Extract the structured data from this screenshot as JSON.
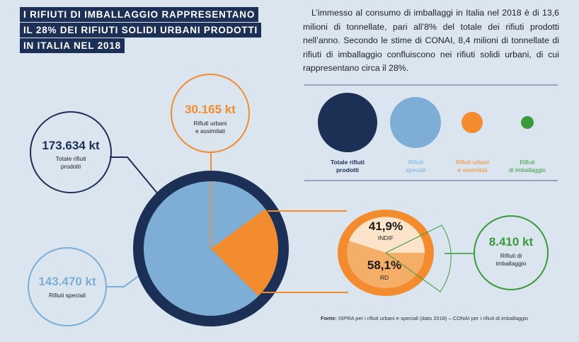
{
  "title": [
    "I RIFIUTI DI IMBALLAGGIO RAPPRESENTANO",
    "IL 28% DEI RIFIUTI SOLIDI URBANI PRODOTTI",
    "IN ITALIA NEL 2018"
  ],
  "paragraph": "L’immesso al consumo di imballaggi in Italia nel 2018 è di 13,6 milioni di tonnellate, pari all’8% del totale dei rifiuti prodotti nell’anno. Secondo le stime di CONAI, 8,4 milioni di tonnellate di rifiuti di imballaggio confluiscono nei rifiuti solidi urbani, di cui rappresentano circa il 28%.",
  "colors": {
    "navy": "#1c2f55",
    "light_blue": "#7eaed6",
    "orange": "#f28c2f",
    "green": "#3a9a3a"
  },
  "legend": [
    {
      "label1": "Totale rifiuti",
      "label2": "prodotti"
    },
    {
      "label1": "Rifiuti",
      "label2": "speciali"
    },
    {
      "label1": "Rifiuti urbani",
      "label2": "e assimilati"
    },
    {
      "label1": "Rifiuti",
      "label2": "di imballaggio"
    }
  ],
  "callouts": {
    "totale": {
      "value": "173.634 kt",
      "label1": "Totale rifiuti",
      "label2": "prodotti"
    },
    "urbani": {
      "value": "30.165 kt",
      "label1": "Rifiuti urbani",
      "label2": "e assimilati"
    },
    "speciali": {
      "value": "143.470 kt",
      "label1": "Rifiuti speciali"
    },
    "imballaggio": {
      "value": "8.410 kt",
      "label1": "Rifiuti di",
      "label2": "imballaggio"
    }
  },
  "split": {
    "indif": {
      "value": "41,9%",
      "label": "INDIF"
    },
    "rd": {
      "value": "58,1%",
      "label": "RD"
    }
  },
  "source": {
    "bold": "Fonte:",
    "text": " ISPRA per i rifiuti urbani e speciali (dato 2018) – CONAI per i rifiuti di imballaggio"
  }
}
